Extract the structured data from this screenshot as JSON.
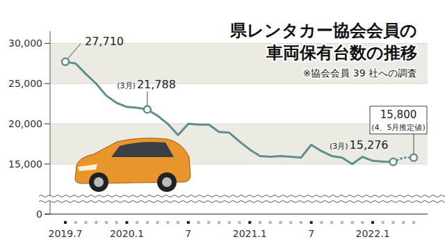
{
  "chart_data": {
    "type": "line",
    "title": [
      "県レンタカー協会会員の",
      "車両保有台数の推移"
    ],
    "note": "※協会会員 39 社への調査",
    "categories": [
      "2019.7",
      null,
      null,
      null,
      null,
      null,
      "2020.1",
      null,
      null,
      null,
      null,
      null,
      "7",
      null,
      null,
      null,
      null,
      null,
      "2021.1",
      null,
      null,
      null,
      null,
      null,
      "7",
      null,
      null,
      null,
      null,
      null,
      "2022.1",
      null,
      null,
      null,
      null
    ],
    "series": [
      {
        "color": "#5e8f8c",
        "line_style": "solid",
        "values": [
          27710,
          27500,
          26200,
          25000,
          23500,
          22600,
          22100,
          22000,
          21788,
          21000,
          20000,
          18600,
          20000,
          19900,
          19900,
          19000,
          18900,
          17800,
          16800,
          16000,
          15900,
          16000,
          15900,
          15800,
          17400,
          16600,
          16000,
          15800,
          15000,
          15900,
          15400,
          15300,
          15276,
          null,
          null
        ]
      },
      {
        "color": "#5e8f8c",
        "line_style": "dotted",
        "values": [
          null,
          null,
          null,
          null,
          null,
          null,
          null,
          null,
          null,
          null,
          null,
          null,
          null,
          null,
          null,
          null,
          null,
          null,
          null,
          null,
          null,
          null,
          null,
          null,
          null,
          null,
          null,
          null,
          null,
          null,
          null,
          null,
          15276,
          15800,
          15800
        ]
      }
    ],
    "ylim": [
      0,
      31500
    ],
    "yticks": [
      0,
      {
        "value": 15000,
        "label": "15,000"
      },
      {
        "value": 20000,
        "label": "20,000"
      },
      {
        "value": 25000,
        "label": "25,000"
      },
      {
        "value": 30000,
        "label": "30,000"
      }
    ],
    "grid": true,
    "annotations": [
      {
        "series": 0,
        "point": 0,
        "text": "27,710"
      },
      {
        "series": 0,
        "point": 8,
        "prefix": "(3月)",
        "text": "21,788"
      },
      {
        "series": 0,
        "point": 32,
        "prefix": "(3月)",
        "text": "15,276"
      },
      {
        "series": 1,
        "point": 34,
        "text": "15,800",
        "note": "(4、5月推定値)"
      }
    ]
  }
}
